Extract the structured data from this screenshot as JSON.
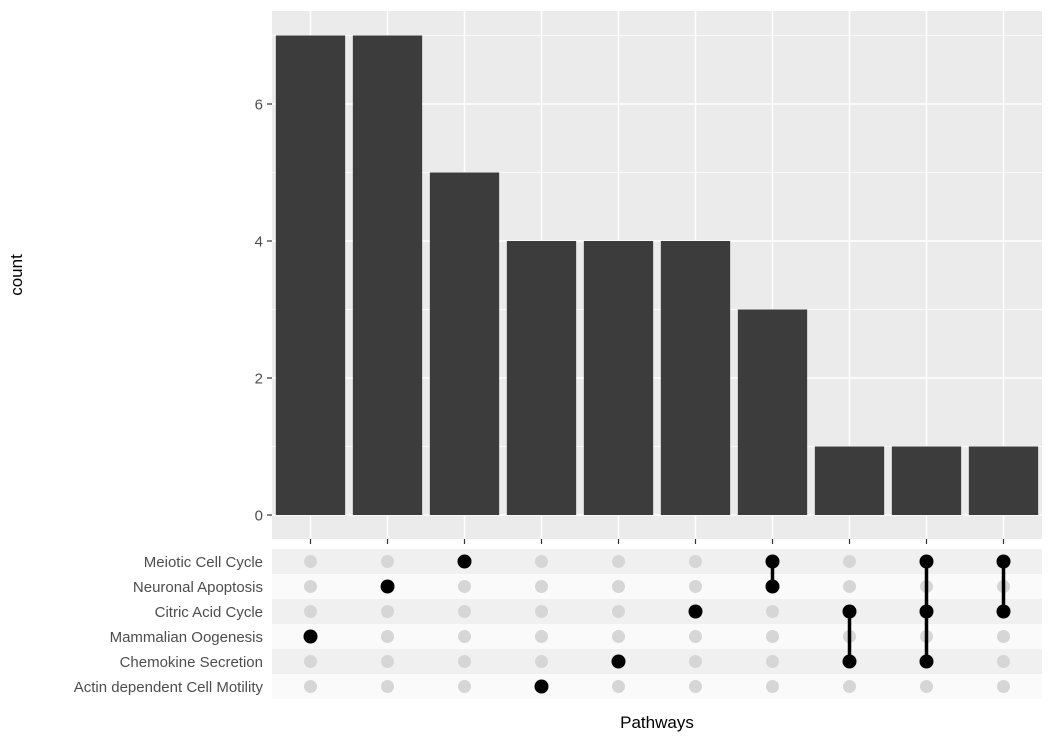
{
  "chart_data": {
    "type": "bar",
    "subtype": "upset-plot",
    "title": "",
    "ylabel": "count",
    "xlabel": "Pathways",
    "yticks": [
      0,
      2,
      4,
      6
    ],
    "ylim": [
      0,
      7.3
    ],
    "bar_values": [
      7,
      7,
      5,
      4,
      4,
      4,
      3,
      1,
      1,
      1
    ],
    "sets": [
      "Meiotic Cell Cycle",
      "Neuronal Apoptosis",
      "Citric Acid Cycle",
      "Mammalian Oogenesis",
      "Chemokine Secretion",
      "Actin dependent Cell Motility"
    ],
    "memberships": [
      [
        "Mammalian Oogenesis"
      ],
      [
        "Neuronal Apoptosis"
      ],
      [
        "Meiotic Cell Cycle"
      ],
      [
        "Actin dependent Cell Motility"
      ],
      [
        "Chemokine Secretion"
      ],
      [
        "Citric Acid Cycle"
      ],
      [
        "Meiotic Cell Cycle",
        "Neuronal Apoptosis"
      ],
      [
        "Citric Acid Cycle",
        "Chemokine Secretion"
      ],
      [
        "Meiotic Cell Cycle",
        "Citric Acid Cycle",
        "Chemokine Secretion"
      ],
      [
        "Meiotic Cell Cycle",
        "Citric Acid Cycle"
      ]
    ],
    "legend": "none",
    "grid": "on",
    "colors": {
      "bar": "#3c3c3c",
      "panel_bg": "#ebebeb",
      "grid": "#ffffff",
      "dot_active": "#000000",
      "dot_inactive": "#d6d6d6",
      "stripe_dark": "#f0f0f0",
      "stripe_light": "#fafafa",
      "tick": "#333333",
      "axis_text": "#4d4d4d",
      "axis_title": "#000000"
    }
  }
}
